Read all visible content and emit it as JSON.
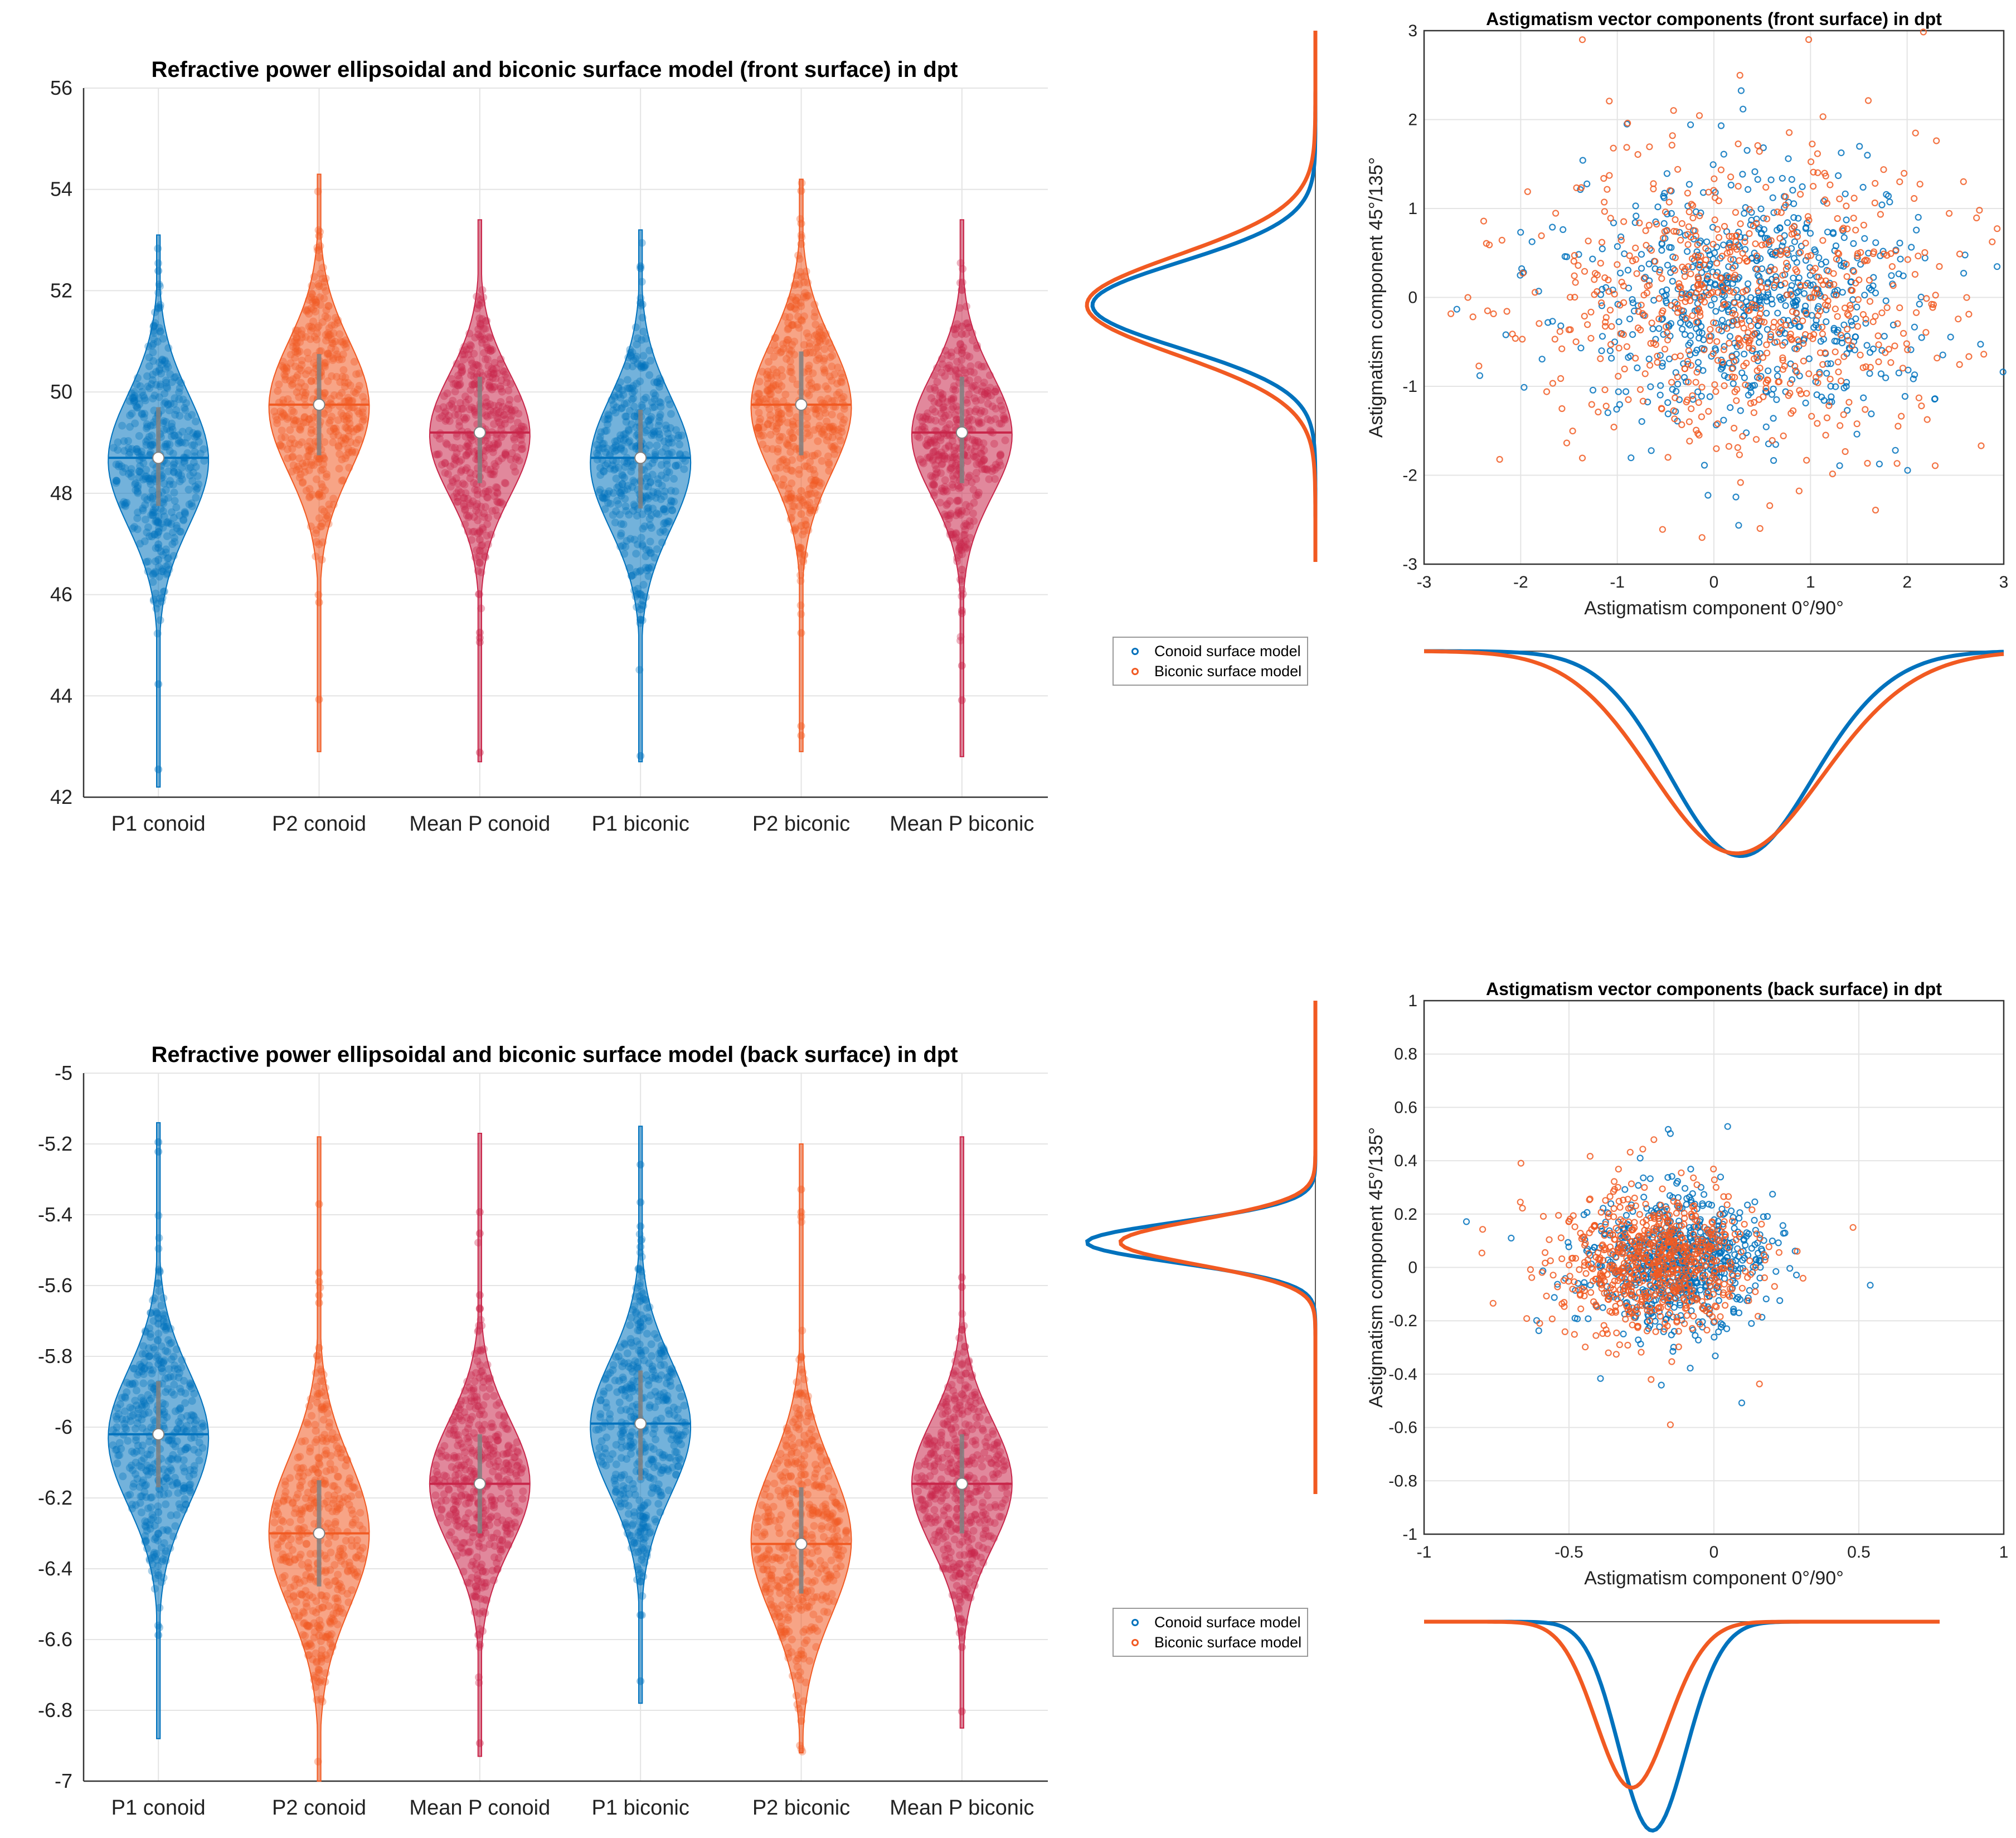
{
  "colors": {
    "conoid": "#0072BD",
    "biconic": "#F15A22",
    "mean": "#C8264A",
    "grid": "#e4e4e4",
    "axis": "#333333"
  },
  "legend": {
    "items": [
      {
        "label": "Conoid surface model",
        "color": "#0072BD"
      },
      {
        "label": "Biconic surface model",
        "color": "#F15A22"
      }
    ]
  },
  "chart_data": [
    {
      "type": "violin",
      "title": "Refractive power ellipsoidal and biconic surface model (front surface) in dpt",
      "categories": [
        "P1 conoid",
        "P2 conoid",
        "Mean P conoid",
        "P1 biconic",
        "P2 biconic",
        "Mean P biconic"
      ],
      "ylim": [
        42,
        56
      ],
      "yticks": [
        42,
        44,
        46,
        48,
        50,
        52,
        54,
        56
      ],
      "ytick_labels": [
        "42",
        "44",
        "46",
        "48",
        "50",
        "52",
        "54",
        "56"
      ],
      "medians": [
        48.7,
        49.75,
        49.2,
        48.7,
        49.75,
        49.2
      ],
      "means": [
        48.65,
        49.7,
        49.15,
        48.6,
        49.7,
        49.15
      ],
      "q1": [
        47.75,
        48.75,
        48.2,
        47.7,
        48.75,
        48.2
      ],
      "q3": [
        49.7,
        50.75,
        50.3,
        49.65,
        50.8,
        50.3
      ],
      "mins": [
        42.2,
        42.9,
        42.7,
        42.7,
        42.9,
        42.8
      ],
      "maxs": [
        53.1,
        54.3,
        53.4,
        53.2,
        54.2,
        53.4
      ],
      "sd": [
        1.3,
        1.3,
        1.2,
        1.3,
        1.3,
        1.2
      ],
      "colors": [
        "#0072BD",
        "#F15A22",
        "#C8264A",
        "#0072BD",
        "#F15A22",
        "#C8264A"
      ]
    },
    {
      "type": "violin",
      "title": "Refractive power ellipsoidal and biconic surface model (back surface) in dpt",
      "categories": [
        "P1 conoid",
        "P2 conoid",
        "Mean P conoid",
        "P1 biconic",
        "P2 biconic",
        "Mean P biconic"
      ],
      "ylim": [
        -7,
        -5
      ],
      "yticks": [
        -7,
        -6.8,
        -6.6,
        -6.4,
        -6.2,
        -6,
        -5.8,
        -5.6,
        -5.4,
        -5.2,
        -5
      ],
      "ytick_labels": [
        "-7",
        "-6.8",
        "-6.6",
        "-6.4",
        "-6.2",
        "-6",
        "-5.8",
        "-5.6",
        "-5.4",
        "-5.2",
        "-5"
      ],
      "medians": [
        -6.02,
        -6.3,
        -6.16,
        -5.99,
        -6.33,
        -6.16
      ],
      "means": [
        -6.03,
        -6.3,
        -6.16,
        -6.0,
        -6.32,
        -6.16
      ],
      "q1": [
        -6.17,
        -6.45,
        -6.3,
        -6.15,
        -6.47,
        -6.3
      ],
      "q3": [
        -5.87,
        -6.15,
        -6.02,
        -5.84,
        -6.17,
        -6.02
      ],
      "mins": [
        -6.88,
        -7.0,
        -6.93,
        -6.78,
        -6.92,
        -6.85
      ],
      "maxs": [
        -5.14,
        -5.18,
        -5.17,
        -5.15,
        -5.2,
        -5.18
      ],
      "sd": [
        0.19,
        0.21,
        0.18,
        0.19,
        0.21,
        0.18
      ],
      "colors": [
        "#0072BD",
        "#F15A22",
        "#C8264A",
        "#0072BD",
        "#F15A22",
        "#C8264A"
      ]
    },
    {
      "type": "scatter",
      "title": "Astigmatism vector components (front surface) in dpt",
      "xlabel": "Astigmatism component 0°/90°",
      "ylabel": "Astigmatism component 45°/135°",
      "xlim": [
        -3,
        3
      ],
      "ylim": [
        -3,
        3
      ],
      "xticks": [
        -3,
        -2,
        -1,
        0,
        1,
        2,
        3
      ],
      "yticks": [
        -3,
        -2,
        -1,
        0,
        1,
        2,
        3
      ],
      "xtick_labels": [
        "-3",
        "-2",
        "-1",
        "0",
        "1",
        "2",
        "3"
      ],
      "ytick_labels": [
        "-3",
        "-2",
        "-1",
        "0",
        "1",
        "2",
        "3"
      ],
      "grid": true,
      "series": [
        {
          "name": "Conoid surface model",
          "center": [
            0.35,
            0.0
          ],
          "sd": [
            0.8,
            0.65
          ],
          "n": 700
        },
        {
          "name": "Biconic surface model",
          "center": [
            0.3,
            -0.05
          ],
          "sd": [
            0.95,
            0.75
          ],
          "n": 700
        }
      ],
      "marginal_x_peak": [
        0.25,
        0.2
      ],
      "marginal_y_peak": [
        -0.1,
        -0.1
      ]
    },
    {
      "type": "scatter",
      "title": "Astigmatism vector components (back surface) in dpt",
      "xlabel": "Astigmatism component 0°/90°",
      "ylabel": "Astigmatism component 45°/135°",
      "xlim": [
        -1,
        1
      ],
      "ylim": [
        -1,
        1
      ],
      "xticks": [
        -1,
        -0.5,
        0,
        0.5,
        1
      ],
      "yticks": [
        -1,
        -0.8,
        -0.6,
        -0.4,
        -0.2,
        0,
        0.2,
        0.4,
        0.6,
        0.8,
        1
      ],
      "xtick_labels": [
        "-1",
        "-0.5",
        "0",
        "0.5",
        "1"
      ],
      "ytick_labels": [
        "-1",
        "-0.8",
        "-0.6",
        "-0.4",
        "-0.2",
        "0",
        "0.2",
        "0.4",
        "0.6",
        "0.8",
        "1"
      ],
      "grid": true,
      "series": [
        {
          "name": "Conoid surface model",
          "center": [
            -0.12,
            0.02
          ],
          "sd": [
            0.14,
            0.11
          ],
          "n": 700
        },
        {
          "name": "Biconic surface model",
          "center": [
            -0.2,
            0.02
          ],
          "sd": [
            0.15,
            0.12
          ],
          "n": 700
        }
      ],
      "marginal_x_peak": [
        -0.12,
        -0.2
      ],
      "marginal_y_peak": [
        0.02,
        0.02
      ]
    }
  ]
}
